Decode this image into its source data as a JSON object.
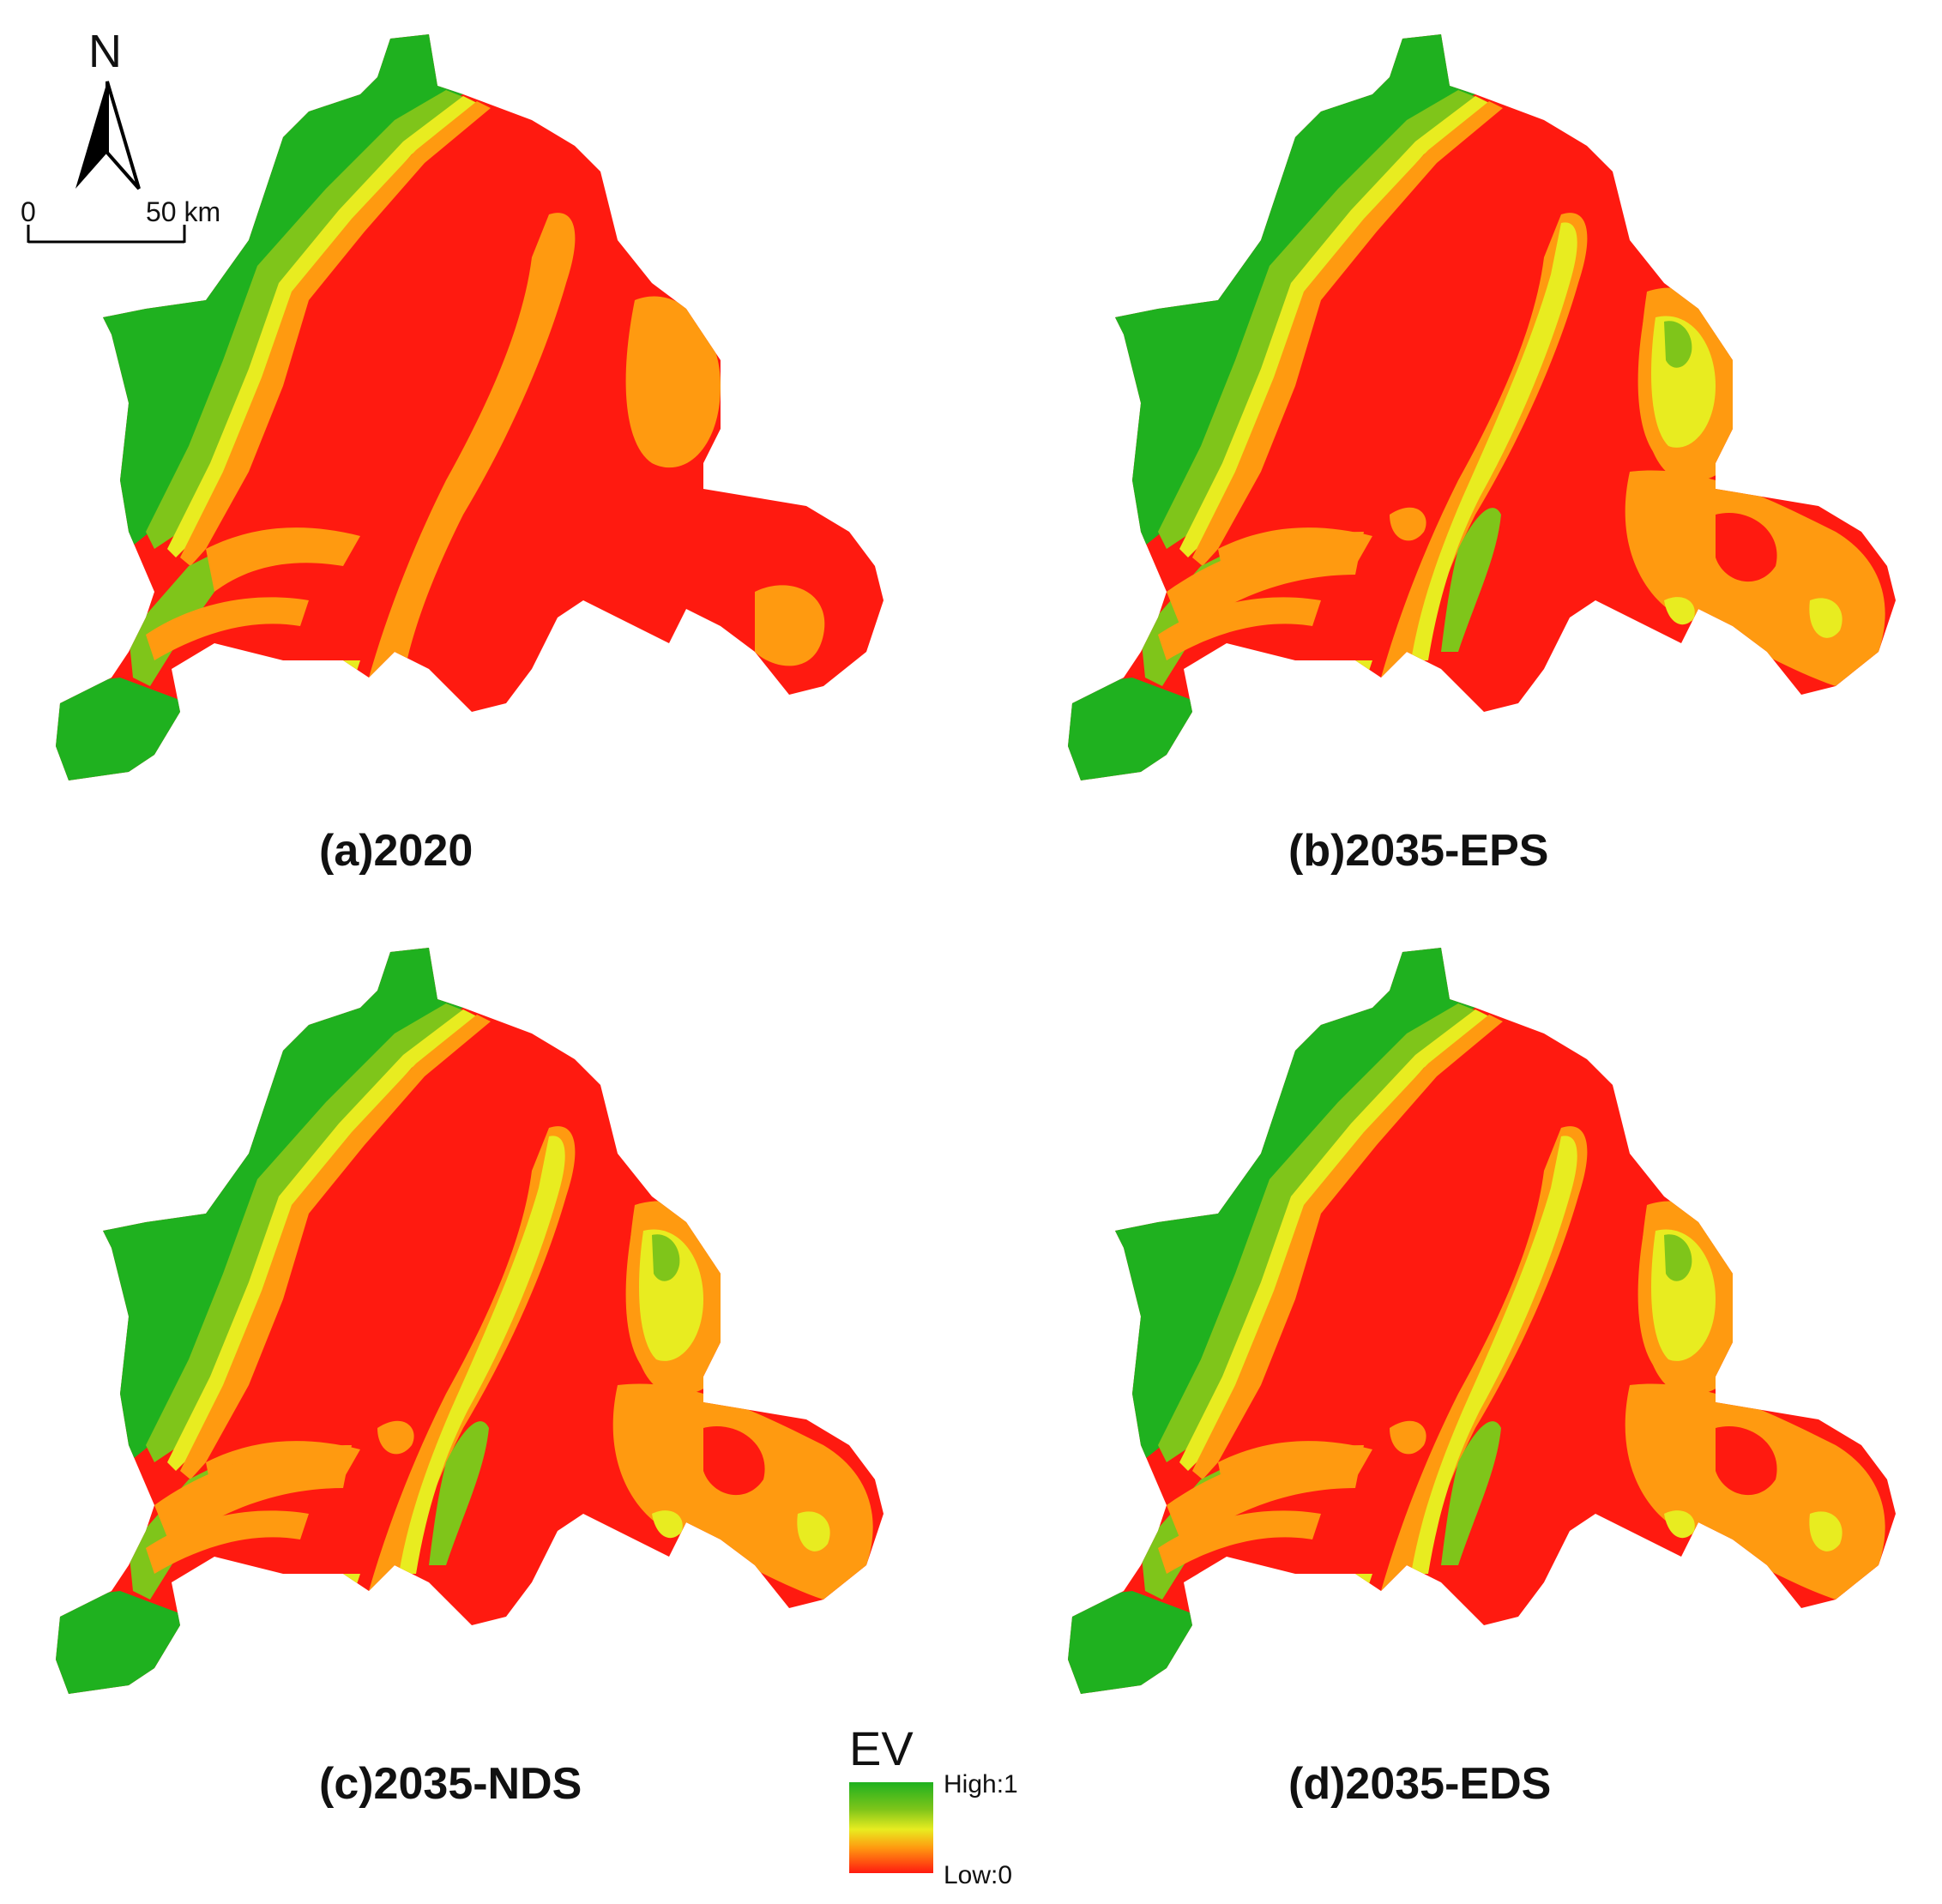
{
  "north_arrow": {
    "label": "N"
  },
  "scale_bar": {
    "start_label": "0",
    "end_label": "50 km"
  },
  "panels": [
    {
      "id": "a",
      "title": "(a)2020"
    },
    {
      "id": "b",
      "title": "(b)2035-EPS"
    },
    {
      "id": "c",
      "title": "(c)2035-NDS"
    },
    {
      "id": "d",
      "title": "(d)2035-EDS"
    }
  ],
  "legend": {
    "title": "EV",
    "high_label": "High:1",
    "low_label": "Low:0",
    "colors": [
      "#1fb11f",
      "#7fc51a",
      "#e8ec20",
      "#ff9a10",
      "#ff1a10"
    ]
  }
}
